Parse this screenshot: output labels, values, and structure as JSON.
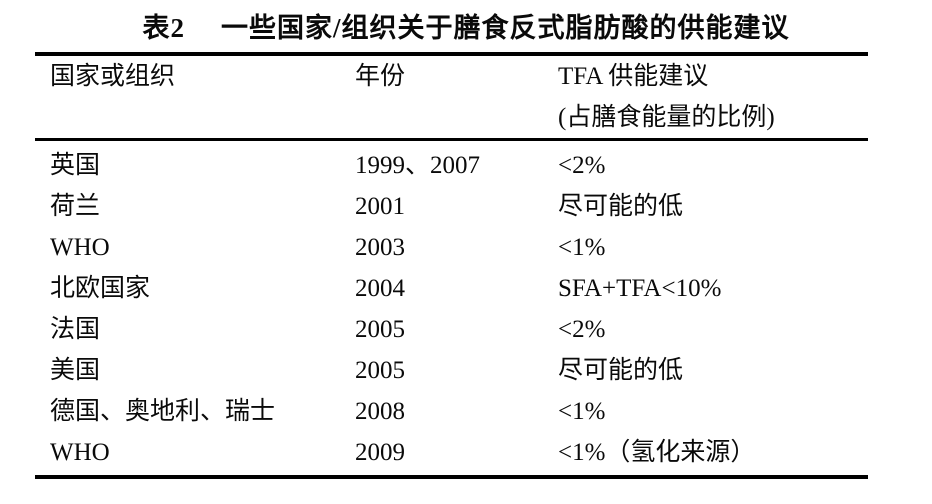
{
  "header": {
    "table_label": "表2",
    "title": "一些国家/组织关于膳食反式脂肪酸的供能建议"
  },
  "table": {
    "columns": [
      {
        "label": "国家或组织"
      },
      {
        "label": "年份"
      },
      {
        "label": "TFA 供能建议",
        "sublabel": "(占膳食能量的比例)"
      }
    ],
    "rows": [
      {
        "country": "英国",
        "year": "1999、2007",
        "recommendation": "<2%"
      },
      {
        "country": "荷兰",
        "year": "2001",
        "recommendation": "尽可能的低"
      },
      {
        "country": "WHO",
        "year": "2003",
        "recommendation": "<1%"
      },
      {
        "country": "北欧国家",
        "year": "2004",
        "recommendation": "SFA+TFA<10%"
      },
      {
        "country": "法国",
        "year": "2005",
        "recommendation": "<2%"
      },
      {
        "country": "美国",
        "year": "2005",
        "recommendation": "尽可能的低"
      },
      {
        "country": "德国、奥地利、瑞士",
        "year": "2008",
        "recommendation": "<1%"
      },
      {
        "country": "WHO",
        "year": "2009",
        "recommendation": "<1%（氢化来源）"
      }
    ]
  },
  "colors": {
    "text": "#0a0a0a",
    "background": "#ffffff",
    "rule": "#000000"
  }
}
